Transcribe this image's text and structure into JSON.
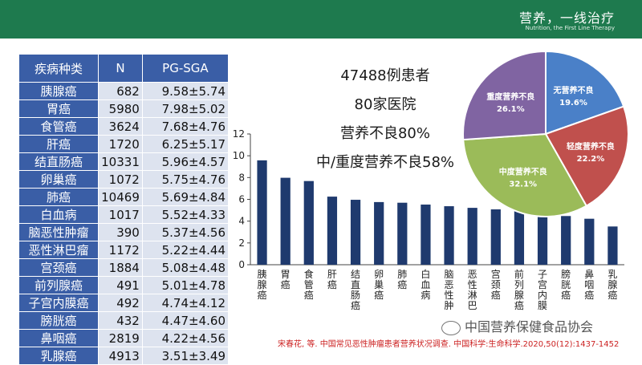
{
  "header": {
    "title": "营养，一线治疗",
    "subtitle": "Nutrition, the First Line Therapy"
  },
  "table": {
    "headers": [
      "疾病种类",
      "N",
      "PG-SGA"
    ],
    "rows": [
      {
        "name": "胰腺癌",
        "n": "682",
        "pg": "9.58±5.74"
      },
      {
        "name": "胃癌",
        "n": "5980",
        "pg": "7.98±5.02"
      },
      {
        "name": "食管癌",
        "n": "3624",
        "pg": "7.68±4.76"
      },
      {
        "name": "肝癌",
        "n": "1720",
        "pg": "6.25±5.17"
      },
      {
        "name": "结直肠癌",
        "n": "10331",
        "pg": "5.96±4.57"
      },
      {
        "name": "卵巢癌",
        "n": "1072",
        "pg": "5.75±4.76"
      },
      {
        "name": "肺癌",
        "n": "10469",
        "pg": "5.69±4.84"
      },
      {
        "name": "白血病",
        "n": "1017",
        "pg": "5.52±4.33"
      },
      {
        "name": "脑恶性肿瘤",
        "n": "390",
        "pg": "5.37±4.56"
      },
      {
        "name": "恶性淋巴瘤",
        "n": "1172",
        "pg": "5.22±4.44"
      },
      {
        "name": "宫颈癌",
        "n": "1884",
        "pg": "5.08±4.48"
      },
      {
        "name": "前列腺癌",
        "n": "491",
        "pg": "5.01±4.78"
      },
      {
        "name": "子宫内膜癌",
        "n": "492",
        "pg": "4.74±4.12"
      },
      {
        "name": "膀胱癌",
        "n": "432",
        "pg": "4.47±4.60"
      },
      {
        "name": "鼻咽癌",
        "n": "2819",
        "pg": "4.22±4.56"
      },
      {
        "name": "乳腺癌",
        "n": "4913",
        "pg": "3.51±3.49"
      }
    ]
  },
  "summary": {
    "patients": "47488例患者",
    "hospitals": "80家医院",
    "malnutrition": "营养不良80%",
    "moderate_severe": "中/重度营养不良58%"
  },
  "chart_data": [
    {
      "type": "bar",
      "categories": [
        "胰腺癌",
        "胃癌",
        "食管癌",
        "肝癌",
        "结直肠癌",
        "卵巢癌",
        "肺癌",
        "白血病",
        "脑恶性肿瘤",
        "恶性淋巴瘤",
        "宫颈癌",
        "前列腺癌",
        "子宫内膜癌",
        "膀胱癌",
        "鼻咽癌",
        "乳腺癌"
      ],
      "tick_labels": [
        "胰腺癌",
        "胃癌",
        "食管癌",
        "肝癌",
        "结直肠癌",
        "卵巢癌",
        "肺癌",
        "白血病",
        "脑恶性肿",
        "恶性淋巴",
        "宫颈癌",
        "前列腺癌",
        "子宫内膜",
        "膀胱癌",
        "鼻咽癌",
        "乳腺癌"
      ],
      "values": [
        9.58,
        7.98,
        7.68,
        6.25,
        5.96,
        5.75,
        5.69,
        5.52,
        5.37,
        5.22,
        5.08,
        5.01,
        4.74,
        4.47,
        4.22,
        3.51
      ],
      "ylim": [
        0,
        12
      ],
      "yticks": [
        0,
        2,
        4,
        6,
        8,
        10,
        12
      ],
      "grid": false,
      "bar_color": "#1f3a6e"
    },
    {
      "type": "pie",
      "slices": [
        {
          "label": "无营养不良",
          "value": 19.6,
          "pct": "19.6%",
          "color": "#4a80c8"
        },
        {
          "label": "轻度营养不良",
          "value": 22.2,
          "pct": "22.2%",
          "color": "#c0504d"
        },
        {
          "label": "中度营养不良",
          "value": 32.1,
          "pct": "32.1%",
          "color": "#9bbb59"
        },
        {
          "label": "重度营养不良",
          "value": 26.1,
          "pct": "26.1%",
          "color": "#8064a2"
        }
      ]
    }
  ],
  "watermark": "中国营养保健食品协会",
  "citation": "宋春花, 等. 中国常见恶性肿瘤患者营养状况调查. 中国科学:生命科学.2020,50(12):1437-1452"
}
